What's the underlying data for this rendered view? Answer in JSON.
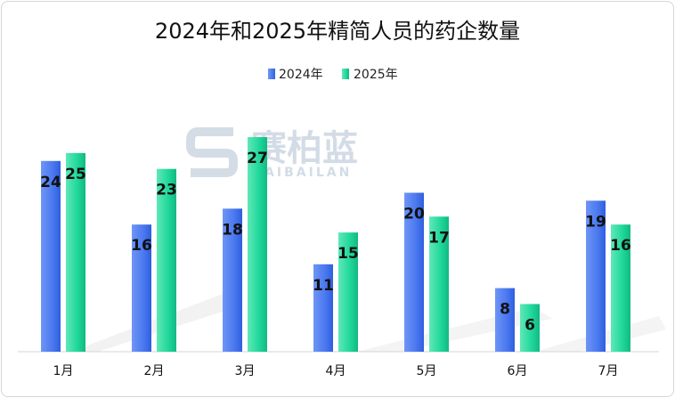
{
  "chart_data": {
    "type": "bar",
    "title": "2024年和2025年精简人员的药企数量",
    "categories": [
      "1月",
      "2月",
      "3月",
      "4月",
      "5月",
      "6月",
      "7月"
    ],
    "series": [
      {
        "name": "2024年",
        "values": [
          24,
          16,
          18,
          11,
          20,
          8,
          19
        ],
        "color": "#4a78ef"
      },
      {
        "name": "2025年",
        "values": [
          25,
          23,
          27,
          15,
          17,
          6,
          16
        ],
        "color": "#1fd79a"
      }
    ],
    "ylim": [
      0,
      27
    ],
    "grid": false,
    "legend_position": "top-center",
    "data_labels": true
  },
  "watermark": {
    "text": "赛柏蓝",
    "subtext": "SAIBAILAN"
  }
}
